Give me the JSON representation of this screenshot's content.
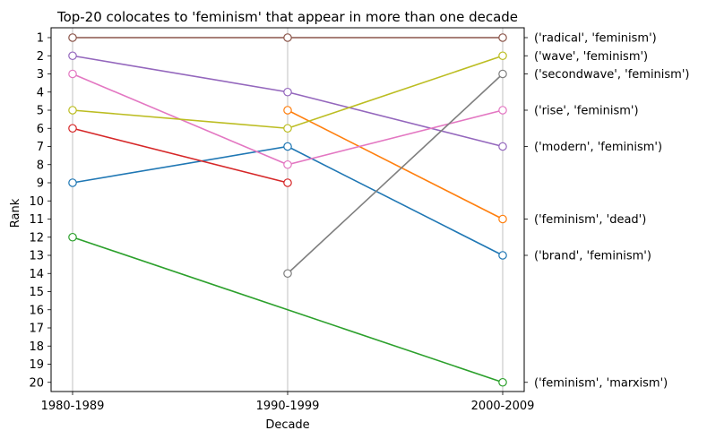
{
  "chart_data": {
    "type": "line",
    "title": "Top-20 colocates to 'feminism' that appear in more than one decade",
    "xlabel": "Decade",
    "ylabel": "Rank",
    "categories": [
      "1980-1989",
      "1990-1999",
      "2000-2009"
    ],
    "ylim": [
      1,
      20
    ],
    "y_inverted": true,
    "y_ticks": [
      "1",
      "2",
      "3",
      "4",
      "5",
      "6",
      "7",
      "8",
      "9",
      "10",
      "11",
      "12",
      "13",
      "14",
      "15",
      "16",
      "17",
      "18",
      "19",
      "20"
    ],
    "grid": "vertical lines at each decade",
    "legend": "series labels at right end of lines",
    "series": [
      {
        "name": "('brand', 'feminism')",
        "values": [
          9,
          7,
          13
        ],
        "color": "#1f77b4"
      },
      {
        "name": "('feminism', 'dead')",
        "values": [
          null,
          5,
          11
        ],
        "color": "#ff7f0e"
      },
      {
        "name": "('feminism', 'marxism')",
        "values": [
          12,
          null,
          20
        ],
        "color": "#2ca02c"
      },
      {
        "name": "",
        "values": [
          6,
          9,
          null
        ],
        "color": "#d62728"
      },
      {
        "name": "('modern', 'feminism')",
        "values": [
          2,
          4,
          7
        ],
        "color": "#9467bd"
      },
      {
        "name": "('radical', 'feminism')",
        "values": [
          1,
          1,
          1
        ],
        "color": "#8c564b"
      },
      {
        "name": "('rise', 'feminism')",
        "values": [
          3,
          8,
          5
        ],
        "color": "#e377c2"
      },
      {
        "name": "('secondwave', 'feminism')",
        "values": [
          null,
          14,
          3
        ],
        "color": "#7f7f7f"
      },
      {
        "name": "('wave', 'feminism')",
        "values": [
          5,
          6,
          2
        ],
        "color": "#bcbd22"
      }
    ]
  }
}
